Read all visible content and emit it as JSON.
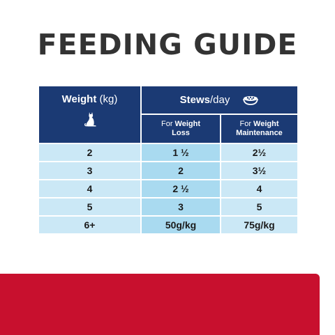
{
  "title": "FEEDING GUIDE",
  "table": {
    "weight_label": "Weight",
    "weight_unit": "(kg)",
    "food_label": "Stews",
    "food_unit": "/day",
    "loss_label_line1": "For ",
    "loss_label_bold1": "Weight",
    "loss_label_line2": "Loss",
    "maint_label_line1": "For ",
    "maint_label_bold1": "Weight",
    "maint_label_line2": "Maintenance",
    "rows": [
      {
        "weight": "2",
        "loss": "1 ½",
        "maintenance": "2½"
      },
      {
        "weight": "3",
        "loss": "2",
        "maintenance": "3½"
      },
      {
        "weight": "4",
        "loss": "2 ½",
        "maintenance": "4"
      },
      {
        "weight": "5",
        "loss": "3",
        "maintenance": "5"
      },
      {
        "weight": "6+",
        "loss": "50g/kg",
        "maintenance": "75g/kg"
      }
    ]
  },
  "icons": {
    "weight": "cat-icon",
    "food": "food-bowl-icon"
  },
  "colors": {
    "header": "#1b3a74",
    "row": "#cbe8f6",
    "loss_column": "#a9daf0",
    "banner": "#c8102e",
    "title": "#333333"
  }
}
